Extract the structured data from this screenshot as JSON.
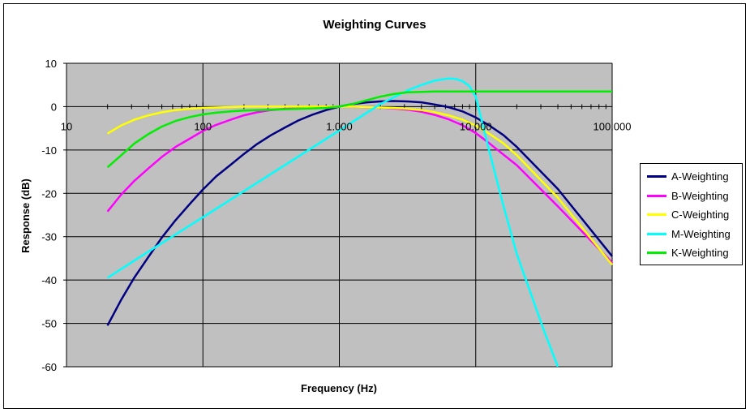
{
  "chart_data": {
    "type": "line",
    "title": "Weighting Curves",
    "xlabel": "Frequency (Hz)",
    "ylabel": "Response (dB)",
    "x_scale": "log",
    "xlim": [
      10,
      100000
    ],
    "ylim": [
      -60,
      10
    ],
    "x_ticks": [
      10,
      100,
      1000,
      10000,
      100000
    ],
    "x_tick_labels": [
      "10",
      "100",
      "1.000",
      "10.000",
      "100.000"
    ],
    "y_ticks": [
      10,
      0,
      -10,
      -20,
      -30,
      -40,
      -50,
      -60
    ],
    "y_tick_labels": [
      "10",
      "0",
      "-10",
      "-20",
      "-30",
      "-40",
      "-50",
      "-60"
    ],
    "grid": true,
    "plot_background": "#c0c0c0",
    "legend_position": "right",
    "series": [
      {
        "name": "A-Weighting",
        "color": "#000080",
        "x": [
          20,
          25,
          31.5,
          40,
          50,
          63,
          80,
          100,
          125,
          160,
          200,
          250,
          315,
          400,
          500,
          630,
          800,
          1000,
          1250,
          1600,
          2000,
          2500,
          3150,
          4000,
          5000,
          6300,
          8000,
          10000,
          12500,
          16000,
          20000,
          40000,
          100000
        ],
        "y": [
          -50.5,
          -44.7,
          -39.4,
          -34.6,
          -30.2,
          -26.2,
          -22.5,
          -19.1,
          -16.1,
          -13.4,
          -10.9,
          -8.6,
          -6.6,
          -4.8,
          -3.2,
          -1.9,
          -0.8,
          0,
          0.6,
          1.0,
          1.2,
          1.3,
          1.2,
          1.0,
          0.5,
          -0.1,
          -1.1,
          -2.5,
          -4.3,
          -6.6,
          -9.3,
          -19.0,
          -34.5
        ]
      },
      {
        "name": "B-Weighting",
        "color": "#ff00ff",
        "x": [
          20,
          25,
          31.5,
          40,
          50,
          63,
          80,
          100,
          125,
          160,
          200,
          250,
          315,
          400,
          500,
          630,
          800,
          1000,
          1250,
          1600,
          2000,
          2500,
          3150,
          4000,
          5000,
          6300,
          8000,
          10000,
          12500,
          16000,
          20000,
          40000,
          100000
        ],
        "y": [
          -24.2,
          -20.4,
          -17.1,
          -14.2,
          -11.6,
          -9.3,
          -7.4,
          -5.6,
          -4.2,
          -3.0,
          -2.0,
          -1.3,
          -0.8,
          -0.5,
          -0.3,
          -0.1,
          0,
          0,
          0,
          -0.1,
          -0.2,
          -0.4,
          -0.7,
          -1.2,
          -1.9,
          -2.9,
          -4.3,
          -6.1,
          -8.4,
          -11.1,
          -13.5,
          -23.0,
          -36.0
        ]
      },
      {
        "name": "C-Weighting",
        "color": "#ffff00",
        "x": [
          20,
          25,
          31.5,
          40,
          50,
          63,
          80,
          100,
          125,
          160,
          200,
          250,
          315,
          400,
          500,
          630,
          800,
          1000,
          1250,
          1600,
          2000,
          2500,
          3150,
          4000,
          5000,
          6300,
          8000,
          10000,
          12500,
          16000,
          20000,
          40000,
          100000
        ],
        "y": [
          -6.2,
          -4.4,
          -3.0,
          -2.0,
          -1.3,
          -0.8,
          -0.5,
          -0.3,
          -0.2,
          -0.1,
          0,
          0,
          0,
          0,
          0,
          0,
          0,
          0,
          0,
          -0.1,
          -0.2,
          -0.3,
          -0.5,
          -0.8,
          -1.3,
          -2.0,
          -3.0,
          -4.4,
          -6.2,
          -8.5,
          -11.2,
          -21.0,
          -36.5
        ]
      },
      {
        "name": "M-Weighting",
        "color": "#00ffff",
        "x": [
          20,
          31.5,
          50,
          63,
          100,
          200,
          500,
          1000,
          2000,
          3150,
          4000,
          5000,
          6300,
          7100,
          8000,
          9000,
          10000,
          12500,
          16000,
          20000,
          31500,
          40000
        ],
        "y": [
          -39.5,
          -35.5,
          -31.5,
          -29.5,
          -25.5,
          -19.5,
          -11.5,
          -5.5,
          0.6,
          3.7,
          5.0,
          6.0,
          6.5,
          6.4,
          5.9,
          4.7,
          2.3,
          -10.0,
          -23.0,
          -34.0,
          -51.5,
          -60.0
        ]
      },
      {
        "name": "K-Weighting",
        "color": "#00ee00",
        "x": [
          20,
          25,
          31.5,
          40,
          50,
          63,
          80,
          100,
          125,
          160,
          200,
          250,
          315,
          400,
          500,
          630,
          800,
          1000,
          1250,
          1600,
          2000,
          2500,
          3150,
          4000,
          5000,
          10000,
          100000
        ],
        "y": [
          -14.0,
          -11.3,
          -8.5,
          -6.3,
          -4.6,
          -3.3,
          -2.4,
          -1.8,
          -1.4,
          -1.1,
          -0.9,
          -0.8,
          -0.7,
          -0.6,
          -0.5,
          -0.4,
          -0.3,
          0,
          0.6,
          1.5,
          2.3,
          2.9,
          3.3,
          3.4,
          3.5,
          3.5,
          3.5
        ]
      }
    ]
  }
}
